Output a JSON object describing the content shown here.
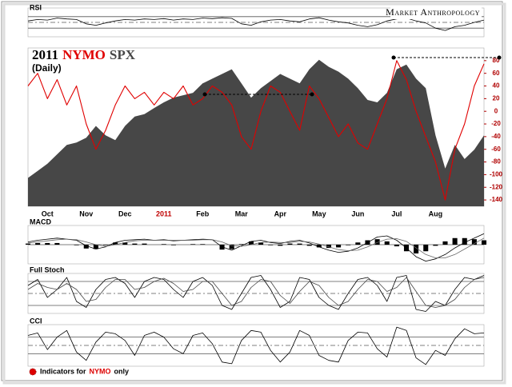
{
  "chart_data": [
    {
      "type": "line",
      "title": "RSI",
      "ylim": [
        0,
        100
      ],
      "levels": [
        30,
        50,
        70
      ],
      "series": [
        {
          "type": "line",
          "color": "#000000",
          "values": [
            55,
            60,
            58,
            65,
            62,
            60,
            45,
            40,
            48,
            55,
            60,
            58,
            62,
            60,
            63,
            58,
            62,
            60,
            65,
            63,
            66,
            64,
            45,
            40,
            52,
            58,
            60,
            55,
            52,
            62,
            66,
            58,
            52,
            48,
            40,
            35,
            42,
            55,
            62,
            65,
            55,
            48,
            30,
            22,
            35,
            40,
            50,
            58
          ]
        }
      ]
    },
    {
      "type": "line",
      "title": "2011",
      "subtitle": "(Daily)",
      "tick_color": "#b00000",
      "categories": [
        null,
        null,
        "Oct",
        null,
        null,
        null,
        "Nov",
        null,
        null,
        null,
        "Dec",
        null,
        null,
        null,
        "2011",
        null,
        null,
        null,
        "Feb",
        null,
        null,
        null,
        "Mar",
        null,
        null,
        null,
        "Apr",
        null,
        null,
        null,
        "May",
        null,
        null,
        null,
        "Jun",
        null,
        null,
        null,
        "Jul",
        null,
        null,
        null,
        "Aug",
        null,
        null,
        null,
        null,
        null
      ],
      "ylim": [
        -150,
        100
      ],
      "yticks": [
        80,
        60,
        40,
        20,
        0,
        -20,
        -40,
        -60,
        -80,
        -100,
        -120,
        -140
      ],
      "y2lim": [
        1050,
        1385
      ],
      "series": [
        {
          "name": "NYMO",
          "type": "line",
          "color": "#e00000",
          "values": [
            40,
            60,
            20,
            50,
            10,
            40,
            -20,
            -60,
            -30,
            10,
            40,
            20,
            30,
            10,
            30,
            20,
            40,
            10,
            20,
            40,
            30,
            10,
            -40,
            -60,
            0,
            40,
            30,
            0,
            -30,
            40,
            20,
            -10,
            -40,
            -20,
            -50,
            -60,
            -20,
            20,
            80,
            50,
            0,
            -40,
            -80,
            -140,
            -60,
            -20,
            40,
            75
          ]
        },
        {
          "name": "SPX",
          "type": "area",
          "axis": "y2",
          "color": "#474747",
          "values": [
            1110,
            1125,
            1140,
            1160,
            1180,
            1185,
            1195,
            1220,
            1200,
            1190,
            1220,
            1240,
            1245,
            1258,
            1270,
            1280,
            1285,
            1290,
            1310,
            1320,
            1330,
            1340,
            1310,
            1280,
            1300,
            1315,
            1330,
            1320,
            1310,
            1340,
            1360,
            1345,
            1335,
            1320,
            1300,
            1275,
            1270,
            1290,
            1340,
            1350,
            1320,
            1300,
            1200,
            1130,
            1180,
            1150,
            1170,
            1200
          ]
        }
      ]
    },
    {
      "type": "line",
      "title": "MACD",
      "ylim": [
        -35,
        35
      ],
      "levels": [
        0
      ],
      "series": [
        {
          "type": "bar",
          "color": "#000000",
          "values": [
            2,
            3,
            3,
            3,
            0,
            -1,
            -7,
            -8,
            -1,
            4,
            4,
            2,
            2,
            0,
            1,
            -1,
            0,
            1,
            1,
            0,
            -9,
            -8,
            1,
            6,
            4,
            -1,
            -2,
            2,
            2,
            -2,
            -5,
            -6,
            -5,
            -1,
            4,
            8,
            10,
            6,
            -3,
            -12,
            -16,
            -12,
            -2,
            6,
            12,
            12,
            10,
            8
          ]
        },
        {
          "type": "line",
          "color": "#000000",
          "values": [
            5,
            8,
            10,
            12,
            10,
            8,
            -2,
            -8,
            -4,
            4,
            8,
            9,
            10,
            8,
            9,
            7,
            8,
            9,
            10,
            9,
            -4,
            -10,
            -2,
            6,
            8,
            4,
            2,
            6,
            8,
            3,
            -4,
            -10,
            -14,
            -12,
            -6,
            4,
            14,
            16,
            8,
            -6,
            -22,
            -30,
            -26,
            -18,
            -6,
            4,
            12,
            20
          ]
        },
        {
          "type": "line",
          "color": "#666666",
          "values": [
            3,
            5,
            7,
            9,
            10,
            9,
            5,
            0,
            -3,
            0,
            4,
            7,
            8,
            8,
            8,
            8,
            8,
            8,
            9,
            9,
            5,
            -2,
            -3,
            0,
            4,
            5,
            4,
            4,
            6,
            5,
            1,
            -4,
            -9,
            -11,
            -10,
            -4,
            4,
            10,
            11,
            6,
            -6,
            -18,
            -24,
            -24,
            -18,
            -8,
            2,
            12
          ]
        }
      ]
    },
    {
      "type": "line",
      "title": "Full Stoch",
      "ylim": [
        0,
        100
      ],
      "levels": [
        20,
        50,
        80
      ],
      "series": [
        {
          "type": "line",
          "color": "#000000",
          "values": [
            70,
            85,
            40,
            60,
            90,
            30,
            15,
            60,
            85,
            90,
            75,
            40,
            80,
            90,
            85,
            60,
            40,
            80,
            90,
            70,
            20,
            10,
            50,
            90,
            95,
            60,
            15,
            30,
            90,
            85,
            40,
            20,
            10,
            50,
            85,
            90,
            70,
            30,
            90,
            95,
            10,
            5,
            30,
            20,
            60,
            90,
            85,
            95
          ]
        },
        {
          "type": "line",
          "color": "#444444",
          "values": [
            60,
            75,
            65,
            60,
            75,
            60,
            30,
            35,
            65,
            85,
            85,
            60,
            65,
            80,
            88,
            75,
            55,
            60,
            80,
            80,
            50,
            20,
            30,
            65,
            85,
            80,
            45,
            25,
            55,
            80,
            70,
            40,
            20,
            30,
            60,
            85,
            80,
            55,
            65,
            90,
            55,
            20,
            15,
            20,
            35,
            65,
            85,
            90
          ]
        }
      ]
    },
    {
      "type": "line",
      "title": "CCI",
      "ylim": [
        -250,
        250
      ],
      "levels": [
        -100,
        0,
        100
      ],
      "series": [
        {
          "type": "line",
          "color": "#000000",
          "values": [
            120,
            150,
            -50,
            100,
            180,
            -80,
            -180,
            40,
            160,
            140,
            60,
            -120,
            120,
            160,
            100,
            -40,
            -100,
            120,
            150,
            20,
            -200,
            -220,
            60,
            180,
            160,
            -60,
            -200,
            -80,
            180,
            120,
            -120,
            -180,
            -200,
            60,
            160,
            150,
            -40,
            -140,
            220,
            180,
            -150,
            -230,
            -60,
            -120,
            80,
            200,
            140,
            150
          ]
        }
      ]
    }
  ],
  "watermark": "Market Anthropology",
  "note": [
    "Indicators for",
    "NYMO",
    "only"
  ]
}
